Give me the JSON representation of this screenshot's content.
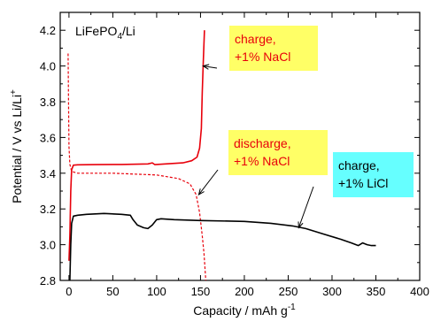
{
  "chart_data": {
    "type": "line",
    "xlabel": "Capacity / mAh g",
    "xlabel_sup": "-1",
    "ylabel": "Potential / V vs Li/Li",
    "ylabel_sup": "+",
    "xlim": [
      -10,
      400
    ],
    "ylim": [
      2.8,
      4.3
    ],
    "xticks": [
      0,
      50,
      100,
      150,
      200,
      250,
      300,
      350,
      400
    ],
    "yticks": [
      2.8,
      3.0,
      3.2,
      3.4,
      3.6,
      3.8,
      4.0,
      4.2
    ],
    "tick_labels_x": [
      "0",
      "50",
      "100",
      "150",
      "200",
      "250",
      "300",
      "350",
      "400"
    ],
    "tick_labels_y": [
      "2.8",
      "3.0",
      "3.2",
      "3.4",
      "3.6",
      "3.8",
      "4.0",
      "4.2"
    ],
    "grid": false,
    "inset_label": {
      "main": "LiFePO",
      "sub": "4",
      "tail": "/Li"
    },
    "series": [
      {
        "name": "charge, +1% NaCl",
        "color": "#e8000b",
        "style": "solid",
        "points": [
          [
            0,
            2.91
          ],
          [
            1,
            3.05
          ],
          [
            2,
            3.3
          ],
          [
            3,
            3.42
          ],
          [
            5,
            3.445
          ],
          [
            10,
            3.447
          ],
          [
            30,
            3.448
          ],
          [
            60,
            3.449
          ],
          [
            90,
            3.452
          ],
          [
            95,
            3.458
          ],
          [
            98,
            3.448
          ],
          [
            110,
            3.452
          ],
          [
            130,
            3.458
          ],
          [
            140,
            3.47
          ],
          [
            146,
            3.49
          ],
          [
            149,
            3.54
          ],
          [
            151,
            3.65
          ],
          [
            152,
            3.85
          ],
          [
            153,
            4.0
          ],
          [
            154.5,
            4.2
          ]
        ]
      },
      {
        "name": "discharge, +1% NaCl",
        "color": "#e8000b",
        "style": "dashed",
        "points": [
          [
            -1,
            4.07
          ],
          [
            -0.5,
            3.8
          ],
          [
            0,
            3.55
          ],
          [
            1,
            3.45
          ],
          [
            3,
            3.41
          ],
          [
            10,
            3.4
          ],
          [
            50,
            3.4
          ],
          [
            100,
            3.39
          ],
          [
            125,
            3.37
          ],
          [
            138,
            3.34
          ],
          [
            145,
            3.28
          ],
          [
            149,
            3.18
          ],
          [
            152,
            3.05
          ],
          [
            154,
            2.95
          ],
          [
            156,
            2.8
          ]
        ]
      },
      {
        "name": "charge, +1% LiCl",
        "color": "#000000",
        "style": "solid",
        "points": [
          [
            1,
            2.8
          ],
          [
            2,
            3.0
          ],
          [
            3,
            3.12
          ],
          [
            5,
            3.16
          ],
          [
            10,
            3.165
          ],
          [
            20,
            3.17
          ],
          [
            40,
            3.175
          ],
          [
            60,
            3.17
          ],
          [
            70,
            3.165
          ],
          [
            73,
            3.14
          ],
          [
            78,
            3.11
          ],
          [
            85,
            3.095
          ],
          [
            90,
            3.09
          ],
          [
            95,
            3.11
          ],
          [
            100,
            3.14
          ],
          [
            105,
            3.145
          ],
          [
            120,
            3.14
          ],
          [
            150,
            3.135
          ],
          [
            200,
            3.13
          ],
          [
            230,
            3.12
          ],
          [
            255,
            3.105
          ],
          [
            270,
            3.09
          ],
          [
            290,
            3.06
          ],
          [
            310,
            3.03
          ],
          [
            322,
            3.01
          ],
          [
            330,
            2.995
          ],
          [
            335,
            3.01
          ],
          [
            340,
            3.0
          ],
          [
            345,
            2.995
          ],
          [
            350,
            2.995
          ]
        ]
      }
    ],
    "annotations": [
      {
        "id": "charge-nacl",
        "lines": [
          "charge,",
          "+1% NaCl"
        ],
        "text_color": "#e8000b",
        "bg": "#ffff66",
        "arrow_to": [
          153,
          4.0
        ]
      },
      {
        "id": "discharge-nacl",
        "lines": [
          "discharge,",
          "+1% NaCl"
        ],
        "text_color": "#e8000b",
        "bg": "#ffff66",
        "arrow_to": [
          148,
          3.28
        ]
      },
      {
        "id": "charge-licl",
        "lines": [
          "charge,",
          "+1% LiCl"
        ],
        "text_color": "#000000",
        "bg": "#66ffff",
        "arrow_to": [
          262,
          3.095
        ]
      }
    ]
  }
}
